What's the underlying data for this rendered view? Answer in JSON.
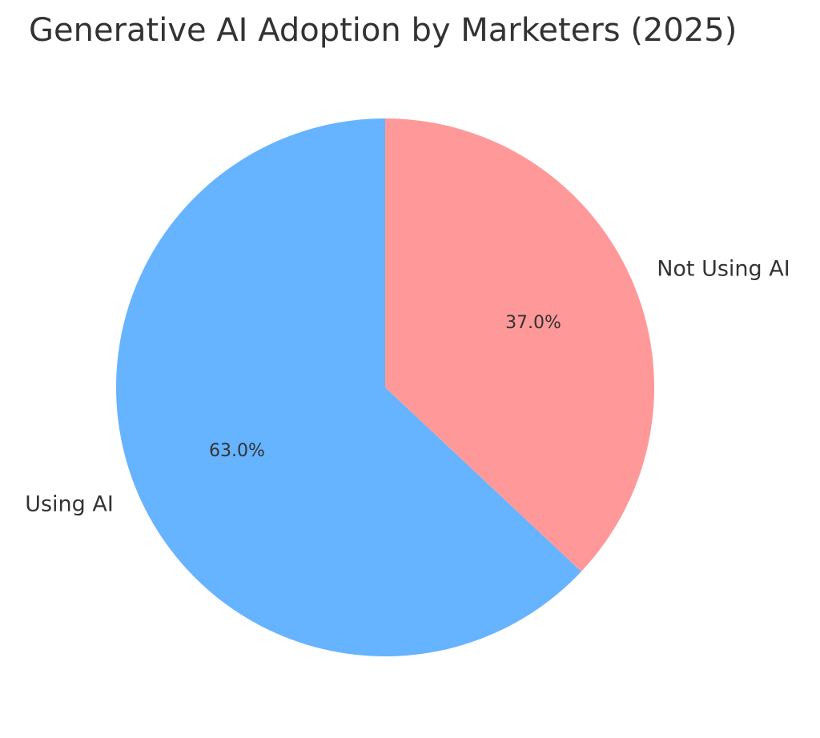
{
  "chart_data": {
    "type": "pie",
    "title": "Generative AI Adoption by Marketers (2025)",
    "categories": [
      "Using AI",
      "Not Using AI"
    ],
    "values": [
      63.0,
      37.0
    ],
    "percent_labels": [
      "63.0%",
      "37.0%"
    ],
    "colors": [
      "#66b3ff",
      "#ff9999"
    ],
    "start_angle_deg": 90,
    "direction": "counterclockwise",
    "legend": "none"
  }
}
